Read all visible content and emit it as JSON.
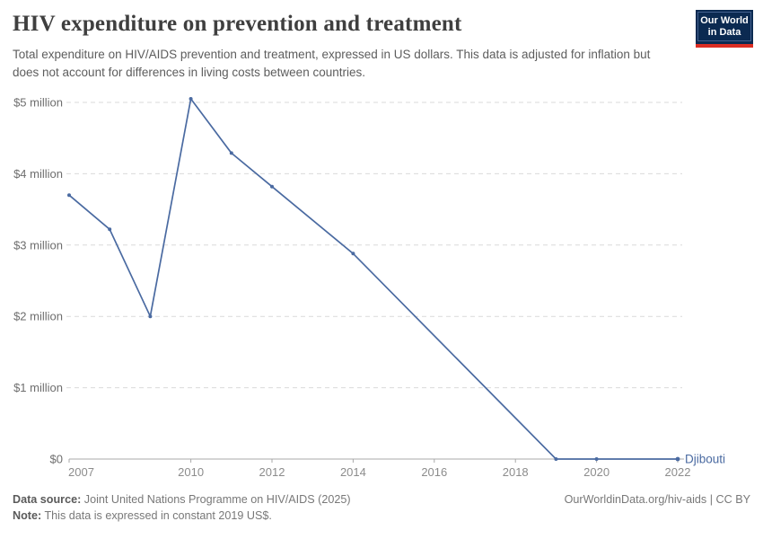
{
  "header": {
    "title": "HIV expenditure on prevention and treatment",
    "subtitle": "Total expenditure on HIV/AIDS prevention and treatment, expressed in US dollars. This data is adjusted for inflation but does not account for differences in living costs between countries.",
    "logo": {
      "line1": "Our World",
      "line2": "in Data"
    }
  },
  "footer": {
    "source_label": "Data source:",
    "source_text": " Joint United Nations Programme on HIV/AIDS (2025)",
    "note_label": "Note:",
    "note_text": " This data is expressed in constant 2019 US$.",
    "right_text": "OurWorldinData.org/hiv-aids | CC BY"
  },
  "chart_data": {
    "type": "line",
    "title": "HIV expenditure on prevention and treatment",
    "xlabel": "",
    "ylabel": "",
    "entities": [
      "Djibouti"
    ],
    "unit": "constant 2019 US$",
    "x_range": [
      2007,
      2022
    ],
    "ylim": [
      0,
      5200000
    ],
    "grid": "horizontal-dashed",
    "legend": "entity-label-at-line-end",
    "xticks": [
      2007,
      2010,
      2012,
      2014,
      2016,
      2018,
      2020,
      2022
    ],
    "yticks": [
      {
        "value": 0,
        "label": "$0"
      },
      {
        "value": 1000000,
        "label": "$1 million"
      },
      {
        "value": 2000000,
        "label": "$2 million"
      },
      {
        "value": 3000000,
        "label": "$3 million"
      },
      {
        "value": 4000000,
        "label": "$4 million"
      },
      {
        "value": 5000000,
        "label": "$5 million"
      }
    ],
    "series": [
      {
        "name": "Djibouti",
        "points": [
          [
            2007,
            3700000
          ],
          [
            2008,
            3220000
          ],
          [
            2009,
            2000000
          ],
          [
            2010,
            5050000
          ],
          [
            2011,
            4290000
          ],
          [
            2012,
            3820000
          ],
          [
            2014,
            2880000
          ],
          [
            2019,
            0
          ],
          [
            2020,
            0
          ],
          [
            2022,
            0
          ]
        ]
      }
    ],
    "colors": {
      "line": "#4a6aa1",
      "gridline": "#dadada",
      "axis": "#a9a9a9",
      "y_tick_label": "#6e6e6e",
      "x_tick_label": "#8c8c8c",
      "logo_navy": "#0b2a51",
      "logo_red": "#dc2d23"
    }
  }
}
